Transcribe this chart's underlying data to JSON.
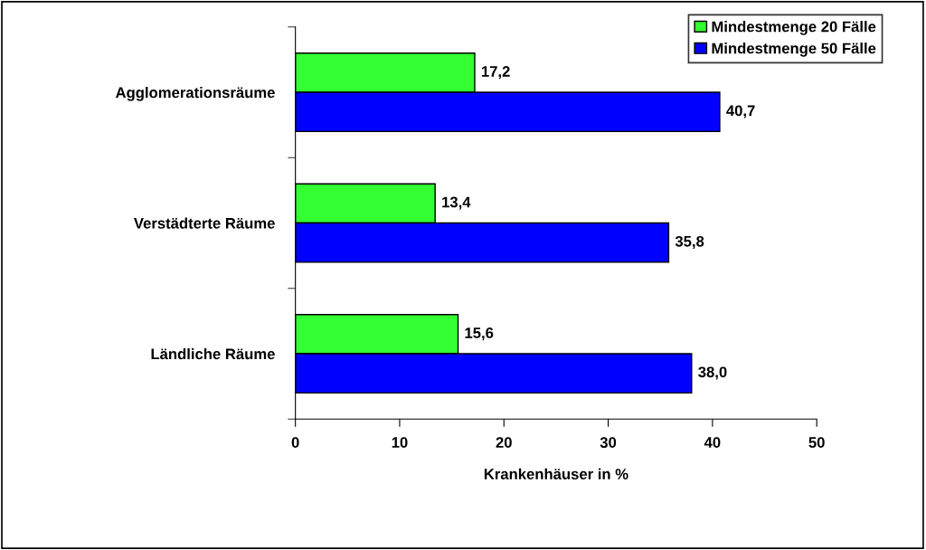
{
  "chart_data": {
    "type": "bar",
    "orientation": "horizontal",
    "categories": [
      "Agglomerationsräume",
      "Verstädterte Räume",
      "Ländliche Räume"
    ],
    "series": [
      {
        "name": "Mindestmenge 20 Fälle",
        "color": "#33ff33",
        "values": [
          17.2,
          13.4,
          15.6
        ],
        "value_labels": [
          "17,2",
          "13,4",
          "15,6"
        ]
      },
      {
        "name": "Mindestmenge 50 Fälle",
        "color": "#0000ff",
        "values": [
          40.7,
          35.8,
          38.0
        ],
        "value_labels": [
          "40,7",
          "35,8",
          "38,0"
        ]
      }
    ],
    "xlabel": "Krankenhäuser in %",
    "xlim": [
      0,
      50
    ],
    "xticks": [
      0,
      10,
      20,
      30,
      40,
      50
    ],
    "legend": "top right",
    "grid": false
  }
}
